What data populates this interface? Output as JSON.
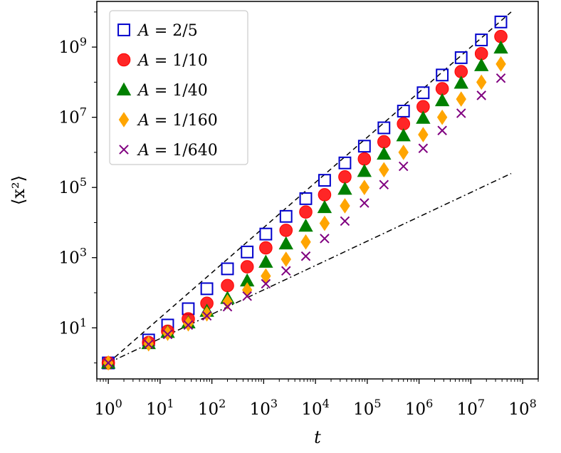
{
  "chart_data": {
    "type": "scatter",
    "xlabel": "t",
    "ylabel": "⟨x²⟩",
    "xscale": "log",
    "yscale": "log",
    "xlim": [
      0.6,
      200000000
    ],
    "ylim": [
      0.35,
      20000000000
    ],
    "x_ticks": [
      {
        "value": 1,
        "exp": "0"
      },
      {
        "value": 10,
        "exp": "1"
      },
      {
        "value": 100,
        "exp": "2"
      },
      {
        "value": 1000,
        "exp": "3"
      },
      {
        "value": 10000,
        "exp": "4"
      },
      {
        "value": 100000,
        "exp": "5"
      },
      {
        "value": 1000000,
        "exp": "6"
      },
      {
        "value": 10000000,
        "exp": "7"
      },
      {
        "value": 100000000,
        "exp": "8"
      }
    ],
    "y_ticks": [
      {
        "value": 10,
        "exp": "1"
      },
      {
        "value": 1000,
        "exp": "3"
      },
      {
        "value": 100000,
        "exp": "5"
      },
      {
        "value": 10000000,
        "exp": "7"
      },
      {
        "value": 1000000000,
        "exp": "9"
      }
    ],
    "tick_base": "10",
    "grid": false,
    "legend_position": "top-left",
    "x": [
      1,
      6,
      14,
      35,
      80,
      200,
      480,
      1100,
      2700,
      6500,
      15000,
      37000,
      88000,
      210000,
      500000,
      1200000,
      2800000,
      6500000,
      16000000,
      38000000
    ],
    "series": [
      {
        "name": "A = 2/5",
        "label_lhs": "A",
        "label_rhs": "2/5",
        "marker": "open-square",
        "color": "#0000cc",
        "values": [
          1,
          4.5,
          12,
          35,
          130,
          480,
          1450,
          4700,
          15000,
          48000,
          160000,
          500000,
          1500000,
          5000000,
          15000000,
          50000000,
          160000000,
          500000000,
          1600000000,
          5200000000
        ]
      },
      {
        "name": "A = 1/10",
        "label_lhs": "A",
        "label_rhs": "1/10",
        "marker": "filled-circle",
        "color": "#ff0000",
        "values": [
          1,
          3.8,
          8,
          18,
          50,
          160,
          550,
          1900,
          6000,
          20000,
          62000,
          200000,
          650000,
          2000000,
          6500000,
          20000000,
          65000000,
          200000000,
          650000000,
          2000000000
        ]
      },
      {
        "name": "A = 1/40",
        "label_lhs": "A",
        "label_rhs": "1/40",
        "marker": "filled-triangle",
        "color": "#008000",
        "values": [
          1,
          3.6,
          7.5,
          14,
          30,
          70,
          220,
          750,
          2500,
          8000,
          27000,
          90000,
          290000,
          900000,
          3000000,
          9500000,
          30000000,
          95000000,
          300000000,
          950000000
        ]
      },
      {
        "name": "A = 1/160",
        "label_lhs": "A",
        "label_rhs": "1/160",
        "marker": "filled-diamond",
        "color": "#ffa500",
        "values": [
          1,
          3.5,
          7,
          13,
          25,
          55,
          120,
          300,
          900,
          2800,
          9500,
          30000,
          100000,
          320000,
          1000000,
          3200000,
          10000000,
          33000000,
          100000000,
          330000000
        ]
      },
      {
        "name": "A = 1/640",
        "label_lhs": "A",
        "label_rhs": "1/640",
        "marker": "x",
        "color": "#800080",
        "values": [
          1,
          3.4,
          6.5,
          12,
          22,
          40,
          80,
          180,
          420,
          1100,
          3500,
          11000,
          36000,
          120000,
          400000,
          1300000,
          4200000,
          13000000,
          42000000,
          130000000
        ]
      }
    ],
    "reference_lines": [
      {
        "style": "dashed",
        "color": "#000000",
        "points": [
          [
            1,
            1
          ],
          [
            60000000,
            10000000000
          ]
        ]
      },
      {
        "style": "dash-dot",
        "color": "#000000",
        "points": [
          [
            1,
            1
          ],
          [
            60000000,
            250000
          ]
        ]
      }
    ]
  }
}
